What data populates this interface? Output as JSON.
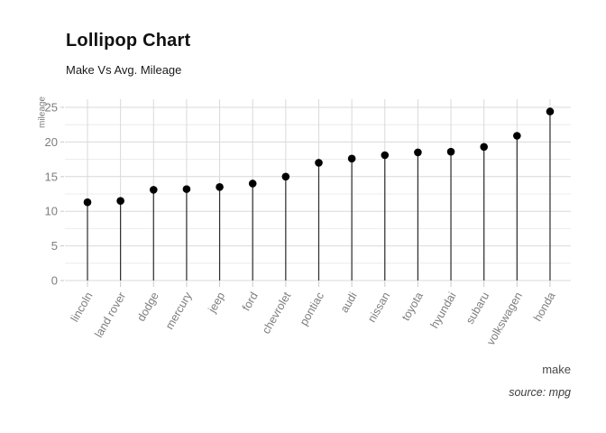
{
  "header": {
    "title": "Lollipop Chart",
    "subtitle": "Make Vs Avg. Mileage"
  },
  "chart_data": {
    "type": "lollipop",
    "title": "Lollipop Chart",
    "subtitle": "Make Vs Avg. Mileage",
    "categories": [
      "lincoln",
      "land rover",
      "dodge",
      "mercury",
      "jeep",
      "ford",
      "chevrolet",
      "pontiac",
      "audi",
      "nissan",
      "toyota",
      "hyundai",
      "subaru",
      "volkswagen",
      "honda"
    ],
    "values": [
      11.3,
      11.5,
      13.1,
      13.2,
      13.5,
      14.0,
      15.0,
      17.0,
      17.6,
      18.1,
      18.5,
      18.6,
      19.3,
      20.9,
      24.4
    ],
    "xlabel": "make",
    "ylabel": "mileage",
    "caption": "source: mpg",
    "ylim": [
      0,
      25
    ],
    "yticks": [
      0,
      5,
      10,
      15,
      20,
      25
    ],
    "yticks_minor": [
      2.5,
      7.5,
      12.5,
      17.5,
      22.5
    ],
    "grid": "horizontal major+minor, vertical per category",
    "legend": "none",
    "colors": {
      "dot": "#000000",
      "stem": "#2b2b2b",
      "grid_major": "#d9d9d9",
      "grid_minor": "#e7e7e7",
      "tick_mark": "#c9c9c9",
      "tick_text": "#7d7d7d",
      "background": "#ffffff"
    }
  }
}
